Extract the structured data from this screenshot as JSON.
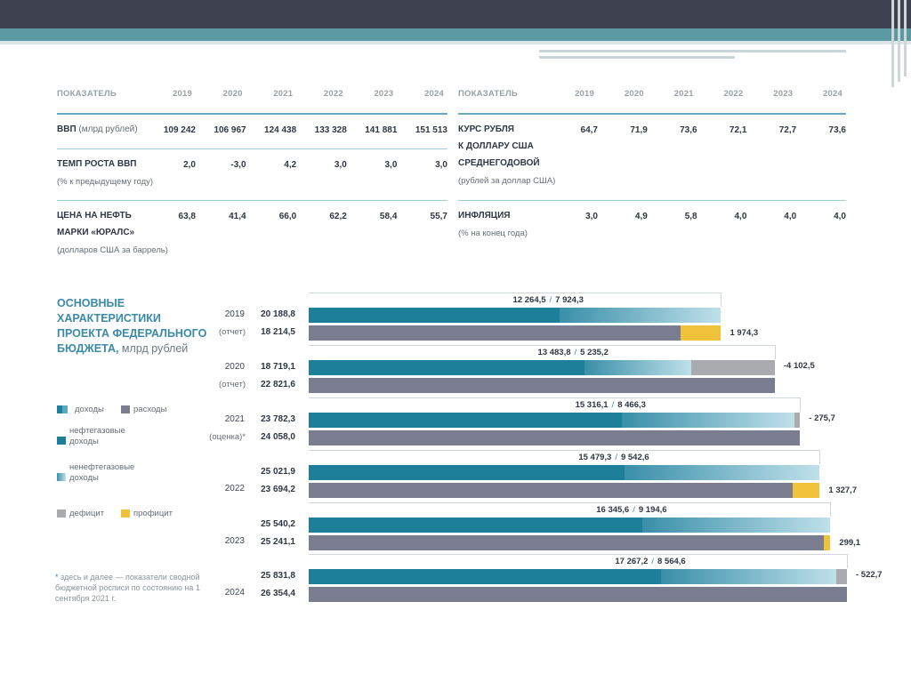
{
  "colors": {
    "oil_gas": "#1d7f9a",
    "non_oil_start": "#3a8fa9",
    "non_oil_end": "#bfe0ea",
    "expenses": "#7a7d8f",
    "deficit": "#a9abae",
    "surplus": "#f0c23c"
  },
  "macro_table": {
    "left": {
      "header": "ПОКАЗАТЕЛЬ",
      "years": [
        "2019",
        "2020",
        "2021",
        "2022",
        "2023",
        "2024"
      ],
      "rows": [
        {
          "name": "ВВП",
          "unit": "(млрд рублей)",
          "values": [
            "109 242",
            "106 967",
            "124 438",
            "133 328",
            "141 881",
            "151 513"
          ]
        },
        {
          "name": "ТЕМП РОСТА ВВП",
          "unit": "(% к предыдущему году)",
          "values": [
            "2,0",
            "-3,0",
            "4,2",
            "3,0",
            "3,0",
            "3,0"
          ]
        },
        {
          "name": "ЦЕНА НА НЕФТЬ\nМАРКИ «ЮРАЛС»",
          "unit": "(долларов США за баррель)",
          "values": [
            "63,8",
            "41,4",
            "66,0",
            "62,2",
            "58,4",
            "55,7"
          ]
        }
      ]
    },
    "right": {
      "header": "ПОКАЗАТЕЛЬ",
      "years": [
        "2019",
        "2020",
        "2021",
        "2022",
        "2023",
        "2024"
      ],
      "rows": [
        {
          "name": "КУРС РУБЛЯ\nК ДОЛЛАРУ США\nСРЕДНЕГОДОВОЙ",
          "unit": "(рублей за доллар США)",
          "values": [
            "64,7",
            "71,9",
            "73,6",
            "72,1",
            "72,7",
            "73,6"
          ]
        },
        {
          "name": "ИНФЛЯЦИЯ",
          "unit": "(% на конец года)",
          "values": [
            "3,0",
            "4,9",
            "5,8",
            "4,0",
            "4,0",
            "4,0"
          ]
        }
      ]
    }
  },
  "budget": {
    "title_lines": [
      "ОСНОВНЫЕ",
      "ХАРАКТЕРИСТИКИ",
      "ПРОЕКТА ФЕДЕРАЛЬНОГО"
    ],
    "title_last": "БЮДЖЕТА,",
    "title_unit": " млрд рублей",
    "legend": {
      "income": "доходы",
      "expenses": "расходы",
      "oil_gas": [
        "нефтегазовые",
        "доходы"
      ],
      "non_oil": [
        "ненефтегазовые",
        "доходы"
      ],
      "deficit": "дефицит",
      "surplus": "профицит"
    },
    "note": "здесь и далее — показатели сводной бюджетной росписи по состоянию на 1 сентября 2021 г.",
    "note_mark": "*"
  },
  "chart_data": {
    "type": "bar",
    "title": "ОСНОВНЫЕ ХАРАКТЕРИСТИКИ ПРОЕКТА ФЕДЕРАЛЬНОГО БЮДЖЕТА, млрд рублей",
    "categories": [
      "2019",
      "2020",
      "2021",
      "2022",
      "2023",
      "2024"
    ],
    "category_notes": [
      "(отчет)",
      "(отчет)",
      "(оценка)*",
      "",
      "",
      ""
    ],
    "series": [
      {
        "name": "нефтегазовые доходы",
        "values": [
          12264.5,
          13483.8,
          15316.1,
          15479.3,
          16345.6,
          17267.2
        ]
      },
      {
        "name": "ненефтегазовые доходы",
        "values": [
          7924.3,
          5235.2,
          8466.3,
          9542.6,
          9194.6,
          8564.6
        ]
      },
      {
        "name": "доходы",
        "values": [
          20188.8,
          18719.1,
          23782.3,
          25021.9,
          25540.2,
          25831.8
        ]
      },
      {
        "name": "расходы",
        "values": [
          18214.5,
          22821.6,
          24058.0,
          23694.2,
          25241.1,
          26354.4
        ]
      },
      {
        "name": "дефицит",
        "values": [
          null,
          -4102.5,
          -275.7,
          null,
          null,
          -522.7
        ]
      },
      {
        "name": "профицит",
        "values": [
          1974.3,
          null,
          null,
          1327.7,
          299.1,
          null
        ]
      }
    ],
    "labels": {
      "oil_gas": [
        "12 264,5",
        "13 483,8",
        "15 316,1",
        "15 479,3",
        "16 345,6",
        "17 267,2"
      ],
      "non_oil": [
        "7 924,3",
        "5 235,2",
        "8 466,3",
        "9 542,6",
        "9 194,6",
        "8 564,6"
      ],
      "income": [
        "20 188,8",
        "18 719,1",
        "23 782,3",
        "25 021,9",
        "25 540,2",
        "25 831,8"
      ],
      "expenses": [
        "18 214,5",
        "22 821,6",
        "24 058,0",
        "23 694,2",
        "25 241,1",
        "26 354,4"
      ],
      "balance": [
        "1 974,3",
        "-4 102,5",
        "- 275,7",
        "1 327,7",
        "299,1",
        "- 522,7"
      ]
    },
    "legend_position": "left",
    "grid": false
  }
}
